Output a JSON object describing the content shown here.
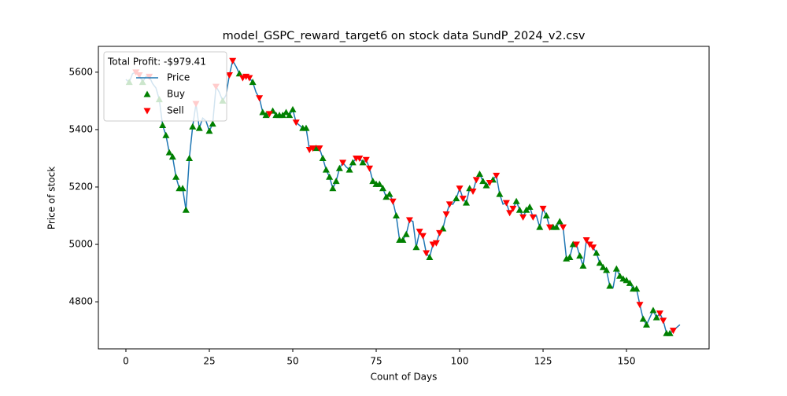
{
  "chart_data": {
    "type": "line",
    "title": "model_GSPC_reward_target6 on stock data SundP_2024_v2.csv",
    "x_label": "Count of Days",
    "y_label": "Price of stock",
    "legend_title": "Total Profit: -$979.41",
    "legend": "upper left",
    "xlim": [
      -8.25,
      174.75
    ],
    "xticks": [
      0,
      25,
      50,
      75,
      100,
      125,
      150
    ],
    "ylim": [
      4636,
      5690
    ],
    "yticks": [
      4800,
      5000,
      5200,
      5400,
      5600
    ],
    "series": [
      {
        "name": "Price",
        "color": "#1f77b4",
        "values": [
          5575,
          5565,
          5595,
          5600,
          5590,
          5565,
          5585,
          5585,
          5560,
          5545,
          5505,
          5415,
          5380,
          5320,
          5305,
          5235,
          5195,
          5195,
          5120,
          5300,
          5410,
          5490,
          5405,
          5440,
          5430,
          5395,
          5420,
          5550,
          5530,
          5500,
          5520,
          5590,
          5640,
          5620,
          5595,
          5580,
          5585,
          5580,
          5565,
          5530,
          5510,
          5460,
          5450,
          5455,
          5465,
          5450,
          5450,
          5450,
          5460,
          5450,
          5470,
          5425,
          5415,
          5405,
          5405,
          5330,
          5335,
          5335,
          5335,
          5300,
          5260,
          5235,
          5195,
          5220,
          5265,
          5285,
          5270,
          5260,
          5285,
          5300,
          5300,
          5285,
          5295,
          5265,
          5220,
          5210,
          5210,
          5195,
          5165,
          5175,
          5150,
          5100,
          5015,
          5015,
          5035,
          5085,
          5080,
          4990,
          5045,
          5030,
          4970,
          4955,
          5000,
          5005,
          5040,
          5055,
          5105,
          5140,
          5140,
          5160,
          5195,
          5160,
          5145,
          5195,
          5185,
          5225,
          5245,
          5220,
          5205,
          5215,
          5225,
          5240,
          5175,
          5140,
          5145,
          5110,
          5125,
          5150,
          5120,
          5095,
          5120,
          5130,
          5095,
          5100,
          5060,
          5125,
          5100,
          5060,
          5060,
          5060,
          5080,
          5060,
          4950,
          4955,
          5000,
          5000,
          4960,
          4925,
          5015,
          5000,
          4990,
          4970,
          4935,
          4920,
          4910,
          4855,
          4850,
          4915,
          4890,
          4880,
          4875,
          4865,
          4845,
          4845,
          4790,
          4740,
          4720,
          4745,
          4770,
          4745,
          4760,
          4735,
          4690,
          4690,
          4700,
          4710,
          4720
        ]
      },
      {
        "name": "Buy",
        "color": "#008000",
        "x": [
          1,
          5,
          10,
          11,
          12,
          13,
          14,
          15,
          16,
          17,
          18,
          19,
          20,
          22,
          25,
          26,
          29,
          34,
          38,
          41,
          42,
          44,
          45,
          46,
          47,
          48,
          49,
          50,
          53,
          54,
          57,
          59,
          60,
          61,
          62,
          63,
          64,
          67,
          68,
          71,
          74,
          75,
          76,
          77,
          78,
          79,
          81,
          82,
          83,
          84,
          87,
          91,
          95,
          99,
          102,
          103,
          106,
          107,
          108,
          110,
          112,
          117,
          118,
          120,
          121,
          124,
          126,
          128,
          129,
          130,
          132,
          133,
          134,
          136,
          137,
          141,
          142,
          143,
          144,
          145,
          147,
          148,
          149,
          150,
          151,
          152,
          153,
          155,
          156,
          158,
          159,
          162,
          163
        ]
      },
      {
        "name": "Sell",
        "color": "#ff0000",
        "x": [
          3,
          4,
          7,
          21,
          27,
          31,
          32,
          35,
          36,
          37,
          40,
          43,
          51,
          55,
          56,
          58,
          65,
          69,
          70,
          72,
          73,
          80,
          85,
          88,
          89,
          90,
          92,
          93,
          94,
          96,
          97,
          100,
          101,
          104,
          105,
          109,
          111,
          114,
          115,
          116,
          119,
          122,
          125,
          127,
          131,
          135,
          138,
          139,
          140,
          154,
          160,
          161,
          164
        ]
      }
    ]
  }
}
